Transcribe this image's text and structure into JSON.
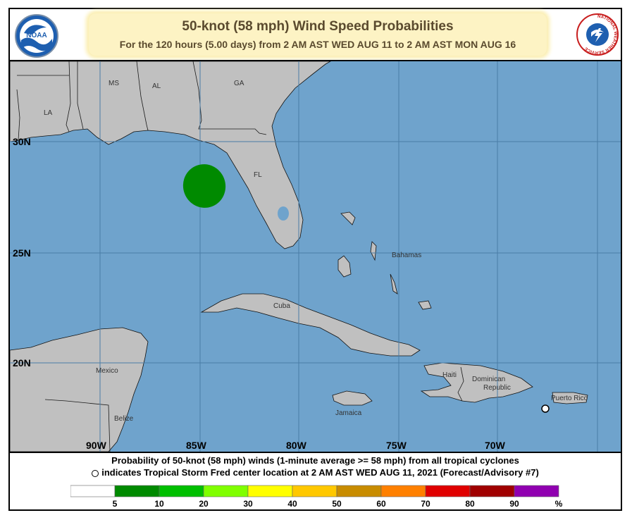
{
  "header": {
    "title": "50-knot (58 mph) Wind Speed Probabilities",
    "subtitle": "For the 120 hours (5.00 days) from 2 AM AST WED AUG 11 to 2 AM AST MON AUG 16",
    "noaa_logo_text": "NOAA",
    "nws_logo_text": "NATIONAL WEATHER SERVICE"
  },
  "map": {
    "colors": {
      "ocean": "#6fa3cc",
      "land": "#c0c0c0",
      "grid": "#4a7da6",
      "probability_5_10": "#008a00"
    },
    "latitude_labels": [
      "30N",
      "25N",
      "20N"
    ],
    "longitude_labels": [
      "90W",
      "85W",
      "80W",
      "75W",
      "70W"
    ],
    "place_labels": {
      "ms": "MS",
      "al": "AL",
      "ga": "GA",
      "la": "LA",
      "fl": "FL",
      "bahamas": "Bahamas",
      "cuba": "Cuba",
      "mexico": "Mexico",
      "belize": "Belize",
      "haiti": "Haiti",
      "dominican_1": "Dominican",
      "dominican_2": "Republic",
      "jamaica": "Jamaica",
      "puerto_rico": "Puerto Rico"
    },
    "probability_area": {
      "band": "5-10%",
      "center_lat": 27.8,
      "center_lon": 84.7
    },
    "storm_center": {
      "lat": 17.9,
      "lon": 67.6
    }
  },
  "footer": {
    "line1": "Probability of 50-knot (58 mph) winds (1-minute average >= 58 mph) from all tropical cyclones",
    "line2": "indicates Tropical Storm Fred center location at 2 AM AST WED AUG 11, 2021 (Forecast/Advisory #7)"
  },
  "legend": {
    "ticks": [
      "5",
      "10",
      "20",
      "30",
      "40",
      "50",
      "60",
      "70",
      "80",
      "90",
      "%"
    ],
    "colors": [
      "#ffffff",
      "#008a00",
      "#00bf00",
      "#80ff00",
      "#ffff00",
      "#ffc800",
      "#c88c00",
      "#ff8000",
      "#e00000",
      "#a00000",
      "#9000b0"
    ]
  }
}
